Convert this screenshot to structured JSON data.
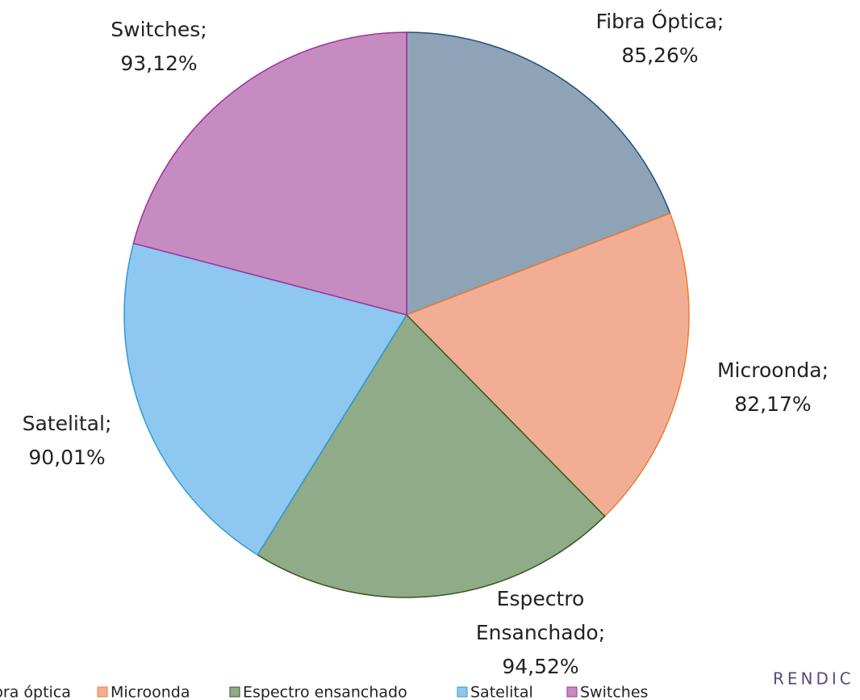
{
  "chart_data": {
    "type": "pie",
    "categories": [
      "Fibra óptica",
      "Microonda",
      "Espectro ensanchado",
      "Satelital",
      "Switches"
    ],
    "values": [
      85.26,
      82.17,
      94.52,
      90.01,
      93.12
    ],
    "value_labels": [
      "85,26%",
      "82,17%",
      "94,52%",
      "90,01%",
      "93,12%"
    ],
    "label_lines": [
      [
        "Fibra Óptica;"
      ],
      [
        "Microonda;"
      ],
      [
        "Espectro",
        "Ensanchado;"
      ],
      [
        "Satelital;"
      ],
      [
        "Switches;"
      ]
    ],
    "colors": [
      "#8fa3b7",
      "#f2ae95",
      "#8fab88",
      "#8ec7ef",
      "#c68cc2"
    ],
    "edge_colors": [
      "#1f4e79",
      "#ed7d31",
      "#375623",
      "#2e9bd6",
      "#a0309a"
    ],
    "legend": "bottom"
  },
  "watermark": "RENDIC"
}
